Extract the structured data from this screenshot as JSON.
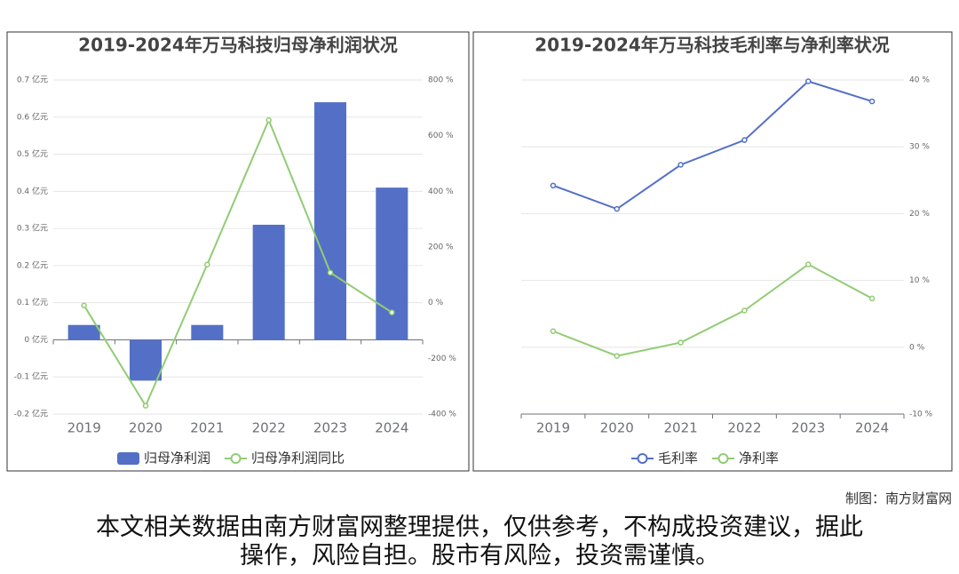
{
  "chart_data": [
    {
      "type": "bar",
      "title": "2019-2024年万马科技归母净利润状况",
      "categories": [
        "2019",
        "2020",
        "2021",
        "2022",
        "2023",
        "2024"
      ],
      "series": [
        {
          "name": "归母净利润",
          "type": "bar",
          "color": "#5470c6",
          "values": [
            0.04,
            -0.11,
            0.04,
            0.31,
            0.64,
            0.41
          ]
        },
        {
          "name": "归母净利润同比",
          "type": "line",
          "axis": "y2",
          "color": "#91cc75",
          "values": [
            -10,
            -370,
            137,
            656,
            108,
            -35
          ]
        }
      ],
      "ylim": [
        -0.2,
        0.7
      ],
      "yticks": [
        {
          "value": -0.2,
          "label": "-0.2 亿元"
        },
        {
          "value": -0.1,
          "label": "-0.1 亿元"
        },
        {
          "value": 0,
          "label": "0 亿元"
        },
        {
          "value": 0.1,
          "label": "0.1 亿元"
        },
        {
          "value": 0.2,
          "label": "0.2 亿元"
        },
        {
          "value": 0.3,
          "label": "0.3 亿元"
        },
        {
          "value": 0.4,
          "label": "0.4 亿元"
        },
        {
          "value": 0.5,
          "label": "0.5 亿元"
        },
        {
          "value": 0.6,
          "label": "0.6 亿元"
        },
        {
          "value": 0.7,
          "label": "0.7 亿元"
        }
      ],
      "y2lim": [
        -400,
        800
      ],
      "y2ticks": [
        {
          "value": -400,
          "label": "-400 %"
        },
        {
          "value": -200,
          "label": "-200 %"
        },
        {
          "value": 0,
          "label": "0 %"
        },
        {
          "value": 200,
          "label": "200 %"
        },
        {
          "value": 400,
          "label": "400 %"
        },
        {
          "value": 600,
          "label": "600 %"
        },
        {
          "value": 800,
          "label": "800 %"
        }
      ],
      "grid": true
    },
    {
      "type": "line",
      "title": "2019-2024年万马科技毛利率与净利率状况",
      "categories": [
        "2019",
        "2020",
        "2021",
        "2022",
        "2023",
        "2024"
      ],
      "series": [
        {
          "name": "毛利率",
          "type": "line",
          "axis": "y2",
          "color": "#5470c6",
          "values": [
            24.2,
            20.7,
            27.3,
            31.0,
            39.8,
            36.8
          ]
        },
        {
          "name": "净利率",
          "type": "line",
          "axis": "y2",
          "color": "#91cc75",
          "values": [
            2.4,
            -1.3,
            0.7,
            5.5,
            12.4,
            7.3
          ]
        }
      ],
      "y2lim": [
        -10,
        40
      ],
      "y2ticks": [
        {
          "value": -10,
          "label": "-10 %"
        },
        {
          "value": 0,
          "label": "0 %"
        },
        {
          "value": 10,
          "label": "10 %"
        },
        {
          "value": 20,
          "label": "20 %"
        },
        {
          "value": 30,
          "label": "30 %"
        },
        {
          "value": 40,
          "label": "40 %"
        }
      ],
      "grid": true
    }
  ],
  "credit": "制图：南方财富网",
  "disclaimer": "本文相关数据由南方财富网整理提供，仅供参考，不构成投资建议，据此操作，风险自担。股市有风险，投资需谨慎。"
}
